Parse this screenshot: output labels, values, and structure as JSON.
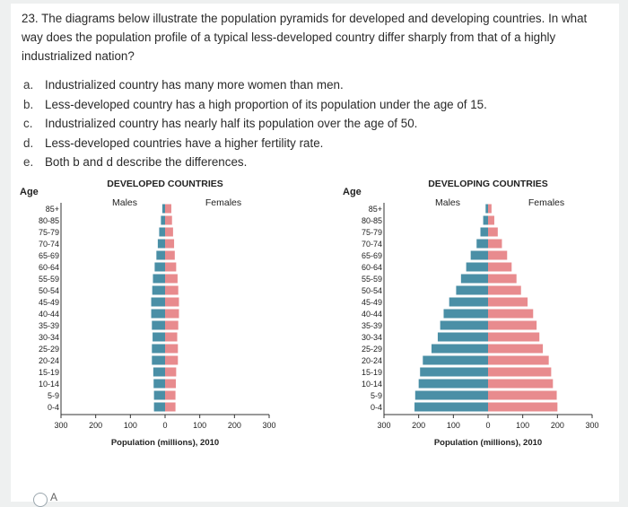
{
  "question": {
    "text": "23. The diagrams below illustrate the population pyramids for developed and developing countries. In what way does the population profile of a typical less-developed country differ sharply from that of a highly industrialized nation?"
  },
  "options": [
    {
      "letter": "a.",
      "text": "Industrialized country has many more women than men."
    },
    {
      "letter": "b.",
      "text": "Less-developed country has a high proportion of its population under the age of 15."
    },
    {
      "letter": "c.",
      "text": "Industrialized country has nearly half its population over the age of 50."
    },
    {
      "letter": "d.",
      "text": "Less-developed countries have a higher fertility rate."
    },
    {
      "letter": "e.",
      "text": "Both b and d describe the differences."
    }
  ],
  "answer_choice": {
    "letter": "A"
  },
  "colors": {
    "males": "#4a8fa6",
    "females": "#e88b8e",
    "axis": "#333333"
  },
  "chart_data": [
    {
      "type": "bar",
      "title": "DEVELOPED COUNTRIES",
      "age_label": "Age",
      "males_label": "Males",
      "females_label": "Females",
      "xlabel": "Population (millions), 2010",
      "xlim": [
        -300,
        300
      ],
      "xticks": [
        "300",
        "200",
        "100",
        "0",
        "100",
        "200",
        "300"
      ],
      "categories": [
        "85+",
        "80-85",
        "75-79",
        "70-74",
        "65-69",
        "60-64",
        "55-59",
        "50-54",
        "45-49",
        "40-44",
        "35-39",
        "30-34",
        "25-29",
        "20-24",
        "15-19",
        "10-14",
        "5-9",
        "0-4"
      ],
      "series": [
        {
          "name": "Males",
          "values": [
            8,
            12,
            17,
            21,
            25,
            30,
            35,
            37,
            40,
            40,
            38,
            36,
            38,
            38,
            34,
            33,
            32,
            32
          ]
        },
        {
          "name": "Females",
          "values": [
            18,
            20,
            23,
            26,
            28,
            32,
            36,
            38,
            40,
            40,
            38,
            35,
            37,
            37,
            32,
            31,
            30,
            30
          ]
        }
      ]
    },
    {
      "type": "bar",
      "title": "DEVELOPING COUNTRIES",
      "age_label": "Age",
      "males_label": "Males",
      "females_label": "Females",
      "xlabel": "Population (millions), 2010",
      "xlim": [
        -300,
        300
      ],
      "xticks": [
        "300",
        "200",
        "100",
        "0",
        "100",
        "200",
        "300"
      ],
      "categories": [
        "85+",
        "80-85",
        "75-79",
        "70-74",
        "65-69",
        "60-64",
        "55-59",
        "50-54",
        "45-49",
        "40-44",
        "35-39",
        "30-34",
        "25-29",
        "20-24",
        "15-19",
        "10-14",
        "5-9",
        "0-4"
      ],
      "series": [
        {
          "name": "Males",
          "values": [
            7,
            14,
            22,
            33,
            50,
            63,
            78,
            92,
            112,
            128,
            138,
            145,
            163,
            188,
            196,
            200,
            210,
            212
          ]
        },
        {
          "name": "Females",
          "values": [
            10,
            18,
            28,
            40,
            55,
            68,
            82,
            95,
            114,
            130,
            140,
            148,
            158,
            175,
            182,
            187,
            198,
            200
          ]
        }
      ]
    }
  ]
}
